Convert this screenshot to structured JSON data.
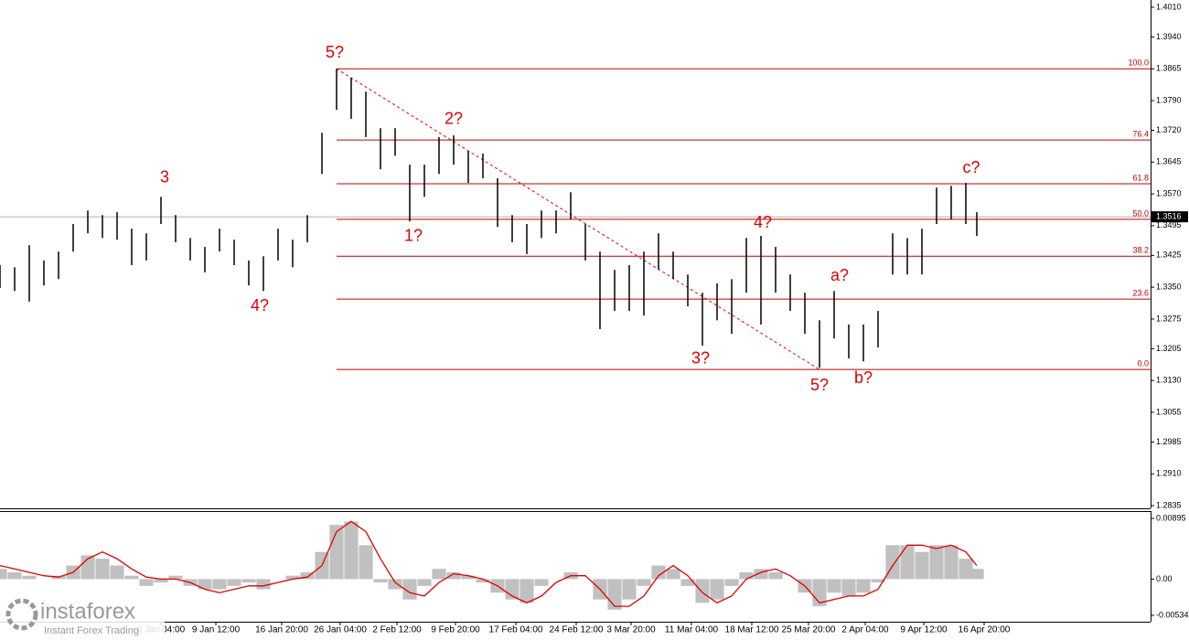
{
  "chart_data": [
    {
      "type": "ohlc",
      "x": [
        0,
        8,
        16,
        24,
        32,
        40,
        48,
        56,
        64,
        72,
        80,
        88,
        96,
        104,
        112,
        120,
        128,
        136,
        144,
        152,
        160,
        168,
        176,
        184,
        192,
        200,
        208,
        216,
        224,
        232,
        240,
        248,
        256,
        264,
        272,
        280,
        288,
        296,
        304,
        312,
        320,
        328,
        336,
        344,
        352,
        360,
        368,
        376,
        384,
        392,
        400,
        408,
        416,
        424,
        432,
        440,
        448,
        456,
        464,
        472,
        480,
        488,
        496,
        504,
        512,
        520,
        528,
        534
      ],
      "high": [
        1.3402,
        1.3397,
        1.3449,
        1.3413,
        1.3434,
        1.3499,
        1.3531,
        1.352,
        1.3527,
        1.3488,
        1.3477,
        1.3563,
        1.352,
        1.3466,
        1.3445,
        1.3488,
        1.3462,
        1.3413,
        1.3423,
        1.3488,
        1.3462,
        1.352,
        1.3714,
        1.3865,
        1.3844,
        1.3811,
        1.3725,
        1.3725,
        1.3639,
        1.3639,
        1.3704,
        1.3708,
        1.3671,
        1.3665,
        1.3607,
        1.352,
        1.3499,
        1.3531,
        1.3531,
        1.3574,
        1.3499,
        1.3434,
        1.3391,
        1.3402,
        1.3434,
        1.3477,
        1.3434,
        1.338,
        1.3337,
        1.3359,
        1.3369,
        1.3466,
        1.3471,
        1.3445,
        1.338,
        1.3337,
        1.3272,
        1.3341,
        1.3262,
        1.3262,
        1.3294,
        1.3477,
        1.3466,
        1.3488,
        1.3585,
        1.3589,
        1.3596,
        1.3527
      ],
      "low": [
        1.3348,
        1.3341,
        1.3316,
        1.3354,
        1.3369,
        1.3434,
        1.3477,
        1.3466,
        1.3462,
        1.3402,
        1.3413,
        1.3499,
        1.3456,
        1.3413,
        1.3385,
        1.3434,
        1.3402,
        1.3354,
        1.3341,
        1.3413,
        1.3397,
        1.3456,
        1.3617,
        1.3768,
        1.3747,
        1.3704,
        1.3628,
        1.366,
        1.3505,
        1.3563,
        1.3617,
        1.3639,
        1.3596,
        1.3607,
        1.3492,
        1.3456,
        1.3428,
        1.3466,
        1.3477,
        1.351,
        1.3413,
        1.3251,
        1.3294,
        1.3294,
        1.3283,
        1.3391,
        1.3369,
        1.3305,
        1.3212,
        1.3272,
        1.324,
        1.3337,
        1.3262,
        1.3337,
        1.3294,
        1.324,
        1.316,
        1.3229,
        1.3182,
        1.3175,
        1.3208,
        1.338,
        1.338,
        1.338,
        1.3499,
        1.351,
        1.3499,
        1.3471
      ],
      "color": "#000000",
      "xlim": [
        0,
        629
      ],
      "xticks": [
        {
          "value": 88,
          "label": "2 Jan 04:00"
        },
        {
          "value": 118,
          "label": "9 Jan 12:00"
        },
        {
          "value": 154,
          "label": "16 Jan 20:00"
        },
        {
          "value": 186,
          "label": "26 Jan 04:00"
        },
        {
          "value": 217,
          "label": "2 Feb 12:00"
        },
        {
          "value": 249,
          "label": "9 Feb 20:00"
        },
        {
          "value": 282,
          "label": "17 Feb 04:00"
        },
        {
          "value": 315,
          "label": "24 Feb 12:00"
        },
        {
          "value": 345,
          "label": "3 Mar 20:00"
        },
        {
          "value": 378,
          "label": "11 Mar 04:00"
        },
        {
          "value": 411,
          "label": "18 Mar 12:00"
        },
        {
          "value": 442,
          "label": "25 Mar 20:00"
        },
        {
          "value": 473,
          "label": "2 Apr 04:00"
        },
        {
          "value": 505,
          "label": "9 Apr 12:00"
        },
        {
          "value": 538,
          "label": "16 Apr 20:00"
        }
      ],
      "ylim": [
        1.2835,
        1.401
      ],
      "yticks": [
        {
          "value": 1.401,
          "label": "1.4010"
        },
        {
          "value": 1.394,
          "label": "1.3940"
        },
        1.3865,
        {
          "value": 1.379,
          "label": "1.3790"
        },
        {
          "value": 1.372,
          "label": "1.3720"
        },
        1.3645,
        {
          "value": 1.357,
          "label": "1.3570"
        },
        1.3495,
        1.3425,
        {
          "value": 1.335,
          "label": "1.3350"
        },
        1.3275,
        1.3205,
        {
          "value": 1.313,
          "label": "1.3130"
        },
        1.3055,
        1.2985,
        {
          "value": 1.291,
          "label": "1.2910"
        },
        1.2835
      ],
      "current_price": {
        "value": 1.3516,
        "label": "1.3516"
      },
      "fibo": {
        "x_start": 184,
        "color": "#c00000",
        "levels": [
          {
            "label": "0.0",
            "price": 1.3156
          },
          {
            "label": "23.6",
            "price": 1.3322
          },
          {
            "label": "38.2",
            "price": 1.3423
          },
          {
            "label": "50.0",
            "price": 1.351
          },
          {
            "label": "61.8",
            "price": 1.3594
          },
          {
            "label": "76.4",
            "price": 1.3697
          },
          {
            "label": "100.0",
            "price": 1.3865
          }
        ]
      },
      "trendline": {
        "x": [
          184,
          448
        ],
        "y": [
          1.3865,
          1.3156
        ],
        "color": "#e00000"
      },
      "annotation_color": "#e00000",
      "annotations": [
        {
          "text": "5?",
          "x": 183,
          "y": 1.3902
        },
        {
          "text": "3",
          "x": 90,
          "y": 1.3607
        },
        {
          "text": "4?",
          "x": 142,
          "y": 1.3305
        },
        {
          "text": "1?",
          "x": 226,
          "y": 1.3469
        },
        {
          "text": "2?",
          "x": 248,
          "y": 1.3745
        },
        {
          "text": "3?",
          "x": 383,
          "y": 1.318
        },
        {
          "text": "4?",
          "x": 417,
          "y": 1.3501
        },
        {
          "text": "5?",
          "x": 448,
          "y": 1.3117
        },
        {
          "text": "a?",
          "x": 459,
          "y": 1.3376
        },
        {
          "text": "b?",
          "x": 472,
          "y": 1.3134
        },
        {
          "text": "c?",
          "x": 531,
          "y": 1.363
        }
      ]
    },
    {
      "type": "macd",
      "histogram": [
        0.0015,
        0.001,
        0.0005,
        0,
        0.0005,
        0.002,
        0.0035,
        0.003,
        0.002,
        0.0005,
        -0.001,
        -0.0005,
        0.0005,
        -0.001,
        -0.0015,
        -0.0015,
        -0.001,
        -0.0005,
        -0.0015,
        0,
        0.0005,
        0.001,
        0.004,
        0.008,
        0.0085,
        0.005,
        -0.0005,
        -0.0015,
        -0.003,
        -0.001,
        0.0015,
        0.001,
        0.0005,
        -0.0005,
        -0.002,
        -0.003,
        -0.0035,
        -0.001,
        0,
        0.001,
        0,
        -0.003,
        -0.0045,
        -0.003,
        -0.001,
        0.002,
        0.0015,
        -0.001,
        -0.0035,
        -0.003,
        -0.001,
        0.001,
        0.0015,
        0.001,
        0,
        -0.002,
        -0.004,
        -0.002,
        -0.0025,
        -0.002,
        -0.0005,
        0.005,
        0.005,
        0.004,
        0.005,
        0.005,
        0.003,
        0.0015
      ],
      "signal": [
        0.002,
        0.0015,
        0.001,
        0.0005,
        0.0003,
        0.001,
        0.003,
        0.004,
        0.003,
        0.0015,
        0.0003,
        0,
        0,
        -0.0005,
        -0.0015,
        -0.002,
        -0.0015,
        -0.001,
        -0.001,
        -0.0005,
        0,
        0.0003,
        0.002,
        0.007,
        0.0085,
        0.007,
        0.003,
        -0.0005,
        -0.002,
        -0.0025,
        -0.0005,
        0.0008,
        0.0005,
        0,
        -0.001,
        -0.0025,
        -0.0035,
        -0.0025,
        -0.0005,
        0.0005,
        0.0005,
        -0.0015,
        -0.004,
        -0.004,
        -0.0025,
        0.0005,
        0.002,
        0.0005,
        -0.002,
        -0.0035,
        -0.0025,
        0,
        0.001,
        0.0015,
        0.0005,
        -0.001,
        -0.0035,
        -0.003,
        -0.0025,
        -0.0025,
        -0.0015,
        0.002,
        0.005,
        0.005,
        0.0045,
        0.005,
        0.004,
        0.002
      ],
      "histogram_color": "#c0c0c0",
      "signal_color": "#e00000",
      "ylim": [
        -0.00534,
        0.00895
      ],
      "yticks": [
        0.00895,
        {
          "value": 0,
          "label": "0.00"
        },
        -0.00534
      ]
    }
  ],
  "watermark": {
    "brand": "instaforex",
    "tagline": "Instant Forex Trading"
  }
}
